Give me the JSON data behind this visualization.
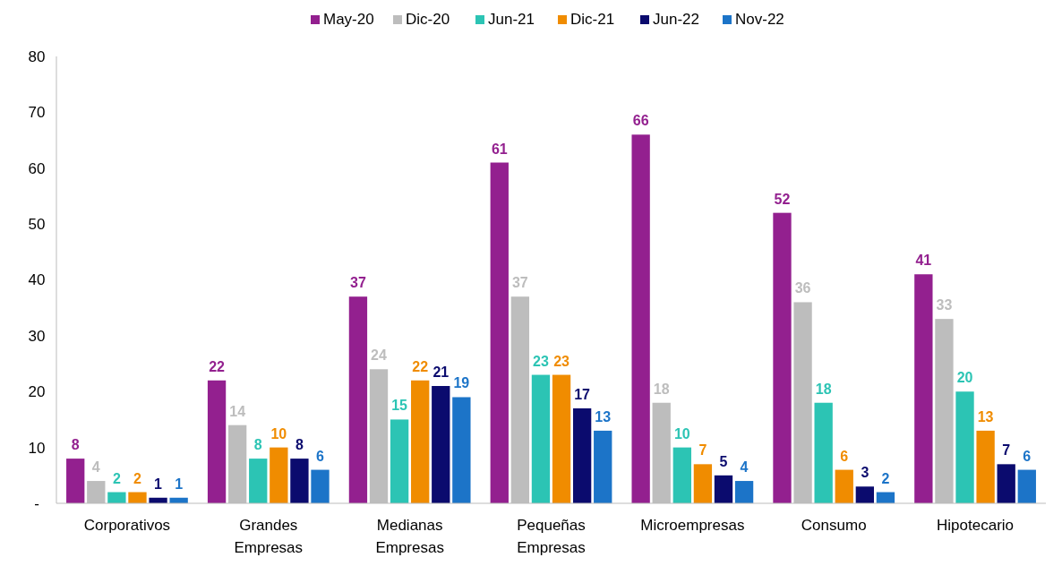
{
  "chart_data": {
    "type": "bar",
    "categories": [
      "Corporativos",
      "Grandes Empresas",
      "Medianas Empresas",
      "Pequeñas Empresas",
      "Microempresas",
      "Consumo",
      "Hipotecario"
    ],
    "series": [
      {
        "name": "May-20",
        "color": "#93208f",
        "values": [
          8,
          22,
          37,
          61,
          66,
          52,
          41
        ]
      },
      {
        "name": "Dic-20",
        "color": "#bdbdbd",
        "values": [
          4,
          14,
          24,
          37,
          18,
          36,
          33
        ]
      },
      {
        "name": "Jun-21",
        "color": "#2cc4b4",
        "values": [
          2,
          8,
          15,
          23,
          10,
          18,
          20
        ]
      },
      {
        "name": "Dic-21",
        "color": "#f08c00",
        "values": [
          2,
          10,
          22,
          23,
          7,
          6,
          13
        ]
      },
      {
        "name": "Jun-22",
        "color": "#0b0b6e",
        "values": [
          1,
          8,
          21,
          17,
          5,
          3,
          7
        ]
      },
      {
        "name": "Nov-22",
        "color": "#1c74c8",
        "values": [
          1,
          6,
          19,
          13,
          4,
          2,
          6
        ]
      }
    ],
    "ylim": [
      0,
      80
    ],
    "yticks": [
      {
        "value": 0,
        "label": "-"
      },
      10,
      20,
      30,
      40,
      50,
      60,
      70,
      80
    ],
    "grid": false,
    "legend": "top",
    "data_labels": true
  }
}
